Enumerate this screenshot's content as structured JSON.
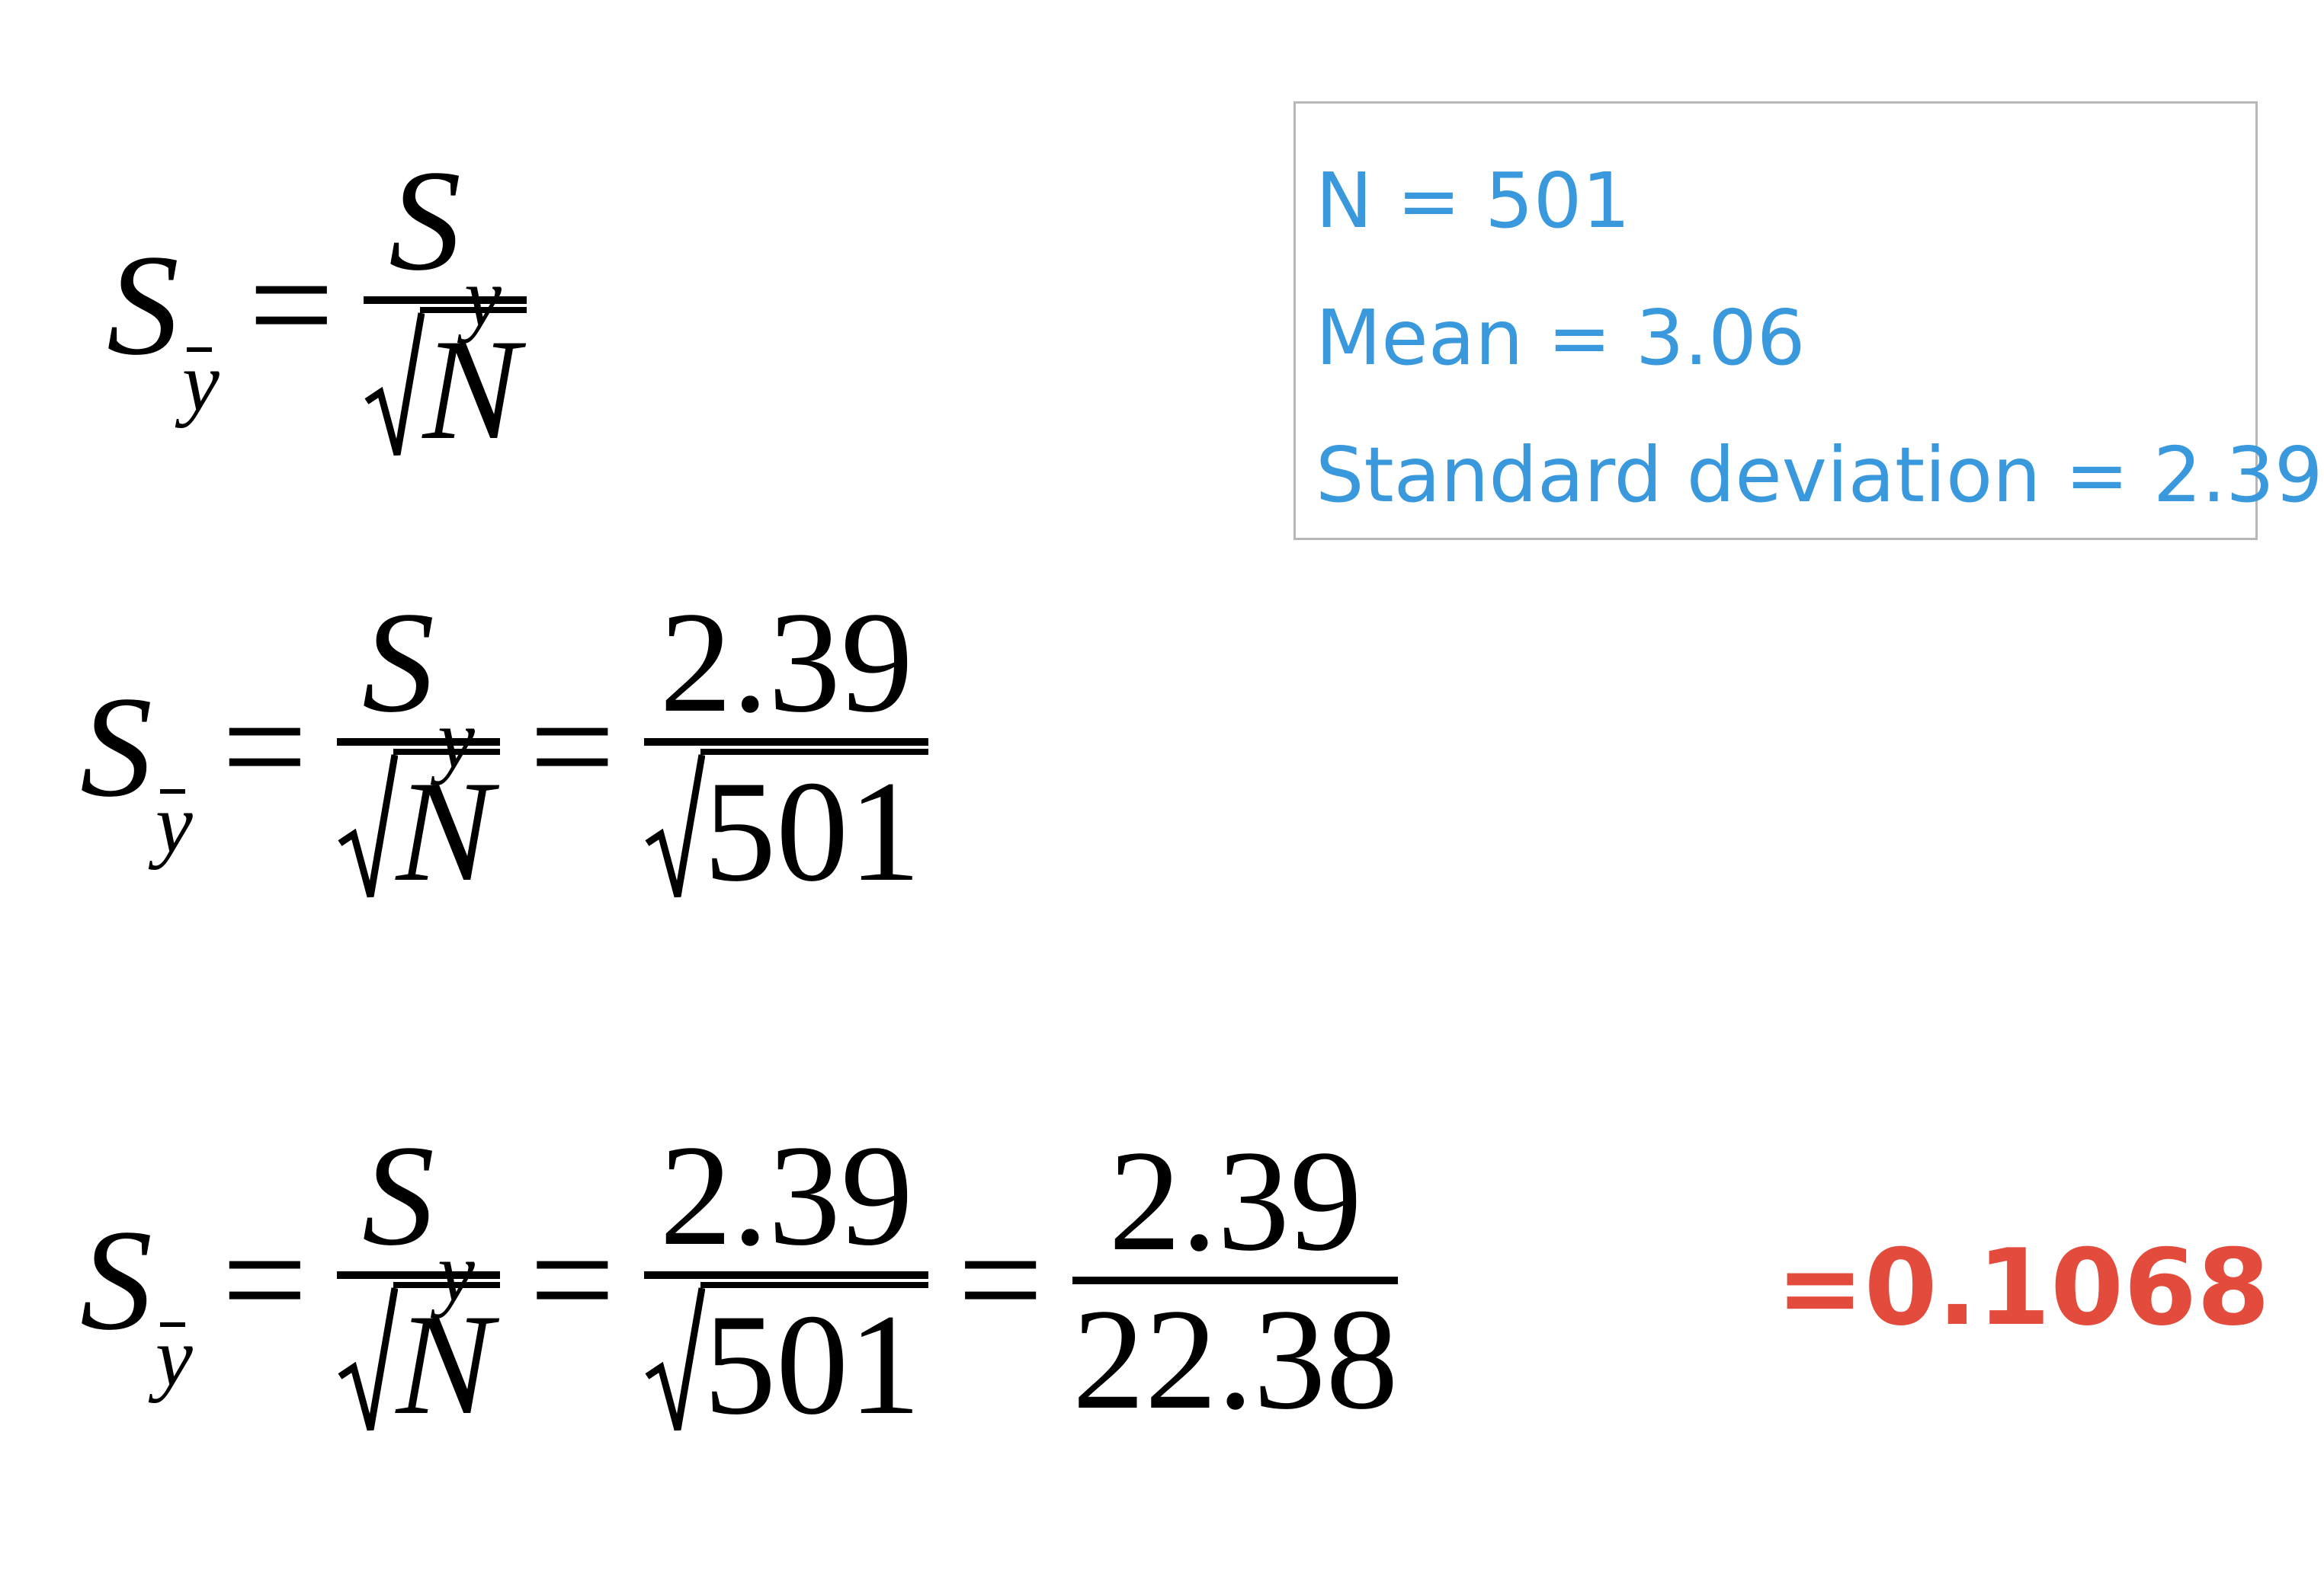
{
  "equations": {
    "eq1": {
      "lhs": {
        "S": "S",
        "sub": "y"
      },
      "frac1": {
        "num_S": "S",
        "num_sub": "y",
        "den": "N"
      }
    },
    "eq2": {
      "lhs": {
        "S": "S",
        "sub": "y"
      },
      "eq": "=",
      "frac1": {
        "num_S": "S",
        "num_sub": "y",
        "den": "N"
      },
      "frac2": {
        "num": "2.39",
        "den": "501"
      }
    },
    "eq3": {
      "lhs": {
        "S": "S",
        "sub": "y"
      },
      "eq": "=",
      "frac1": {
        "num_S": "S",
        "num_sub": "y",
        "den": "N"
      },
      "frac2": {
        "num": "2.39",
        "den": "501"
      },
      "frac3": {
        "num": "2.39",
        "den": "22.38"
      }
    }
  },
  "info": {
    "n": "N = 501",
    "mean": "Mean = 3.06",
    "sd": "Standard deviation = 2.39"
  },
  "result": "=0.1068",
  "colors": {
    "info_text": "#3a98dc",
    "result": "#e34b3c",
    "box_border": "#b7b7b7"
  }
}
